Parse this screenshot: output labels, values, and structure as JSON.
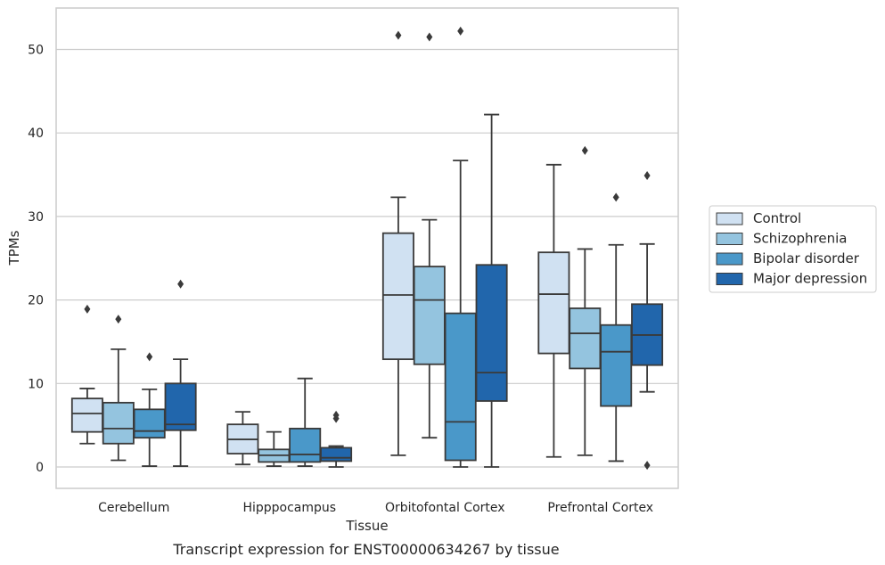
{
  "chart_data": {
    "type": "box",
    "caption": "Transcript expression for ENST00000634267 by tissue",
    "xlabel": "Tissue",
    "ylabel": "TPMs",
    "ylim": [
      -2.5,
      55.0
    ],
    "yticks": [
      0,
      10,
      20,
      30,
      40,
      50
    ],
    "grid": "horizontal",
    "legend_position": "right",
    "categories": [
      "Cerebellum",
      "Hipppocampus",
      "Orbitofontal Cortex",
      "Prefrontal Cortex"
    ],
    "series": [
      {
        "name": "Control",
        "color": "#d0e1f2",
        "boxes": [
          {
            "whisker_low": 2.8,
            "q1": 4.2,
            "median": 6.4,
            "q3": 8.2,
            "whisker_high": 9.4,
            "outliers": [
              18.9
            ]
          },
          {
            "whisker_low": 0.3,
            "q1": 1.6,
            "median": 3.3,
            "q3": 5.1,
            "whisker_high": 6.6,
            "outliers": []
          },
          {
            "whisker_low": 1.4,
            "q1": 12.9,
            "median": 20.6,
            "q3": 28.0,
            "whisker_high": 32.3,
            "outliers": [
              51.7
            ]
          },
          {
            "whisker_low": 1.2,
            "q1": 13.6,
            "median": 20.7,
            "q3": 25.7,
            "whisker_high": 36.2,
            "outliers": []
          }
        ]
      },
      {
        "name": "Schizophrenia",
        "color": "#94c4df",
        "boxes": [
          {
            "whisker_low": 0.8,
            "q1": 2.8,
            "median": 4.6,
            "q3": 7.7,
            "whisker_high": 14.1,
            "outliers": [
              17.7
            ]
          },
          {
            "whisker_low": 0.1,
            "q1": 0.6,
            "median": 1.4,
            "q3": 2.1,
            "whisker_high": 4.2,
            "outliers": []
          },
          {
            "whisker_low": 3.5,
            "q1": 12.3,
            "median": 20.0,
            "q3": 24.0,
            "whisker_high": 29.6,
            "outliers": [
              51.5
            ]
          },
          {
            "whisker_low": 1.4,
            "q1": 11.8,
            "median": 16.0,
            "q3": 19.0,
            "whisker_high": 26.1,
            "outliers": [
              37.9
            ]
          }
        ]
      },
      {
        "name": "Bipolar disorder",
        "color": "#4a98c9",
        "boxes": [
          {
            "whisker_low": 0.1,
            "q1": 3.5,
            "median": 4.3,
            "q3": 6.9,
            "whisker_high": 9.3,
            "outliers": [
              13.2
            ]
          },
          {
            "whisker_low": 0.1,
            "q1": 0.6,
            "median": 1.5,
            "q3": 4.6,
            "whisker_high": 10.6,
            "outliers": []
          },
          {
            "whisker_low": 0.0,
            "q1": 0.8,
            "median": 5.4,
            "q3": 18.4,
            "whisker_high": 36.7,
            "outliers": [
              52.2
            ]
          },
          {
            "whisker_low": 0.7,
            "q1": 7.3,
            "median": 13.8,
            "q3": 17.0,
            "whisker_high": 26.6,
            "outliers": [
              32.3
            ]
          }
        ]
      },
      {
        "name": "Major depression",
        "color": "#2166ac",
        "boxes": [
          {
            "whisker_low": 0.1,
            "q1": 4.4,
            "median": 5.1,
            "q3": 10.0,
            "whisker_high": 12.9,
            "outliers": [
              21.9
            ]
          },
          {
            "whisker_low": 0.0,
            "q1": 0.7,
            "median": 1.1,
            "q3": 2.3,
            "whisker_high": 2.5,
            "outliers": [
              5.8,
              6.2
            ]
          },
          {
            "whisker_low": 0.0,
            "q1": 7.9,
            "median": 11.3,
            "q3": 24.2,
            "whisker_high": 42.2,
            "outliers": []
          },
          {
            "whisker_low": 9.0,
            "q1": 12.2,
            "median": 15.8,
            "q3": 19.5,
            "whisker_high": 26.7,
            "outliers": [
              34.9,
              0.2
            ]
          }
        ]
      }
    ]
  }
}
